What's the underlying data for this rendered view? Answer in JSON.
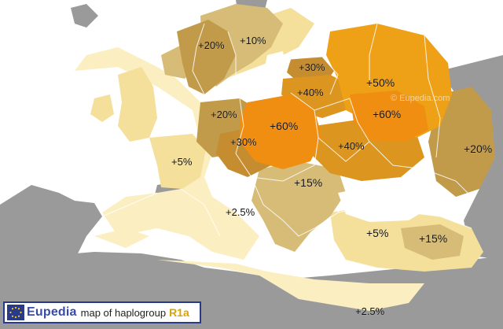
{
  "legend": {
    "brand": "Eupedia",
    "text": "map of haplogroup",
    "haplogroup": "R1a",
    "logo_icon": "eu-stars-icon"
  },
  "watermarks": [
    "© Eupedia.com",
    "© Eupedia.com"
  ],
  "regions": [
    {
      "id": "norway",
      "label": "+20%"
    },
    {
      "id": "sweden",
      "label": "+10%"
    },
    {
      "id": "latvia",
      "label": "+30%"
    },
    {
      "id": "lithuania",
      "label": "+40%"
    },
    {
      "id": "russia-north",
      "label": "+50%"
    },
    {
      "id": "germany-north",
      "label": "+20%"
    },
    {
      "id": "poland",
      "label": "+60%"
    },
    {
      "id": "belarus",
      "label": "+60%"
    },
    {
      "id": "czechia",
      "label": "+30%"
    },
    {
      "id": "ukraine",
      "label": "+40%"
    },
    {
      "id": "russia-east",
      "label": "+20%"
    },
    {
      "id": "france",
      "label": "+5%"
    },
    {
      "id": "balkans",
      "label": "+15%"
    },
    {
      "id": "italy",
      "label": "+2.5%"
    },
    {
      "id": "anatolia-west",
      "label": "+5%"
    },
    {
      "id": "anatolia-east",
      "label": "+15%"
    },
    {
      "id": "north-africa",
      "label": "+2.5%"
    }
  ],
  "colors": {
    "sea": "#ffffff",
    "land_outside": "#9a9a9a",
    "level_2_5": "#fbeec0",
    "level_5": "#f4e09a",
    "level_10": "#e6cb7a",
    "level_15": "#cdb06a",
    "level_20": "#c29b4a",
    "level_30": "#c58d30",
    "level_40": "#dc951f",
    "level_50": "#eea017",
    "level_60": "#f08e12",
    "borders": "#ffffff",
    "legend_border": "#2a3a8a"
  }
}
